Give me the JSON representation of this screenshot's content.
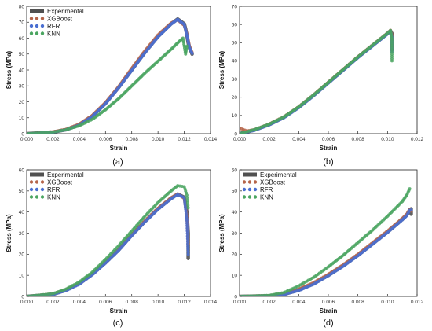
{
  "figure": {
    "panel_labels": [
      "(a)",
      "(b)",
      "(c)",
      "(d)"
    ]
  },
  "legend": {
    "entries": [
      {
        "name": "Experimental",
        "color": "#555555"
      },
      {
        "name": "XGBoost",
        "color": "#b5654a"
      },
      {
        "name": "RFR",
        "color": "#4a6fd1"
      },
      {
        "name": "KNN",
        "color": "#4aa560"
      }
    ]
  },
  "chart_data": [
    {
      "type": "scatter",
      "panel": "(a)",
      "xlabel": "Strain",
      "ylabel": "Stress (MPa)",
      "xlim": [
        0,
        0.014
      ],
      "ylim": [
        0,
        80
      ],
      "xticks": [
        "0.000",
        "0.002",
        "0.004",
        "0.006",
        "0.008",
        "0.010",
        "0.012",
        "0.014"
      ],
      "yticks": [
        "0",
        "10",
        "20",
        "30",
        "40",
        "50",
        "60",
        "70",
        "80"
      ],
      "legend_visible": true,
      "series": [
        {
          "name": "Experimental",
          "x": [
            0,
            0.002,
            0.003,
            0.004,
            0.005,
            0.006,
            0.007,
            0.008,
            0.009,
            0.01,
            0.011,
            0.0115,
            0.012,
            0.0121,
            0.0122,
            0.0123,
            0.0124,
            0.0125,
            0.0126
          ],
          "y": [
            0,
            1,
            2.5,
            5.5,
            11,
            19,
            29,
            40,
            51,
            61,
            69,
            72,
            69,
            66,
            62,
            57,
            54,
            52,
            50
          ]
        },
        {
          "name": "XGBoost",
          "x": [
            0,
            0.002,
            0.003,
            0.004,
            0.005,
            0.006,
            0.007,
            0.008,
            0.009,
            0.01,
            0.011,
            0.0115,
            0.012,
            0.0122,
            0.0124,
            0.0126
          ],
          "y": [
            0,
            1.2,
            2.8,
            6,
            11.5,
            19.5,
            29.5,
            41,
            52,
            62,
            69.5,
            71.5,
            68,
            63,
            55,
            51
          ]
        },
        {
          "name": "RFR",
          "x": [
            0,
            0.002,
            0.003,
            0.004,
            0.005,
            0.006,
            0.007,
            0.008,
            0.009,
            0.01,
            0.011,
            0.0115,
            0.012,
            0.0122,
            0.0124,
            0.0126
          ],
          "y": [
            0,
            0.9,
            2.4,
            5.4,
            10.8,
            18.8,
            28.8,
            39.8,
            50.8,
            60.8,
            68.8,
            71.8,
            68.5,
            62,
            54,
            50.5
          ]
        },
        {
          "name": "KNN",
          "x": [
            0,
            0.002,
            0.003,
            0.004,
            0.005,
            0.006,
            0.007,
            0.008,
            0.009,
            0.01,
            0.011,
            0.0115,
            0.0119,
            0.012,
            0.0121,
            0.0122
          ],
          "y": [
            0,
            1,
            2.5,
            5,
            9,
            15,
            22,
            30,
            38,
            45.5,
            53,
            57,
            60,
            55,
            50,
            55
          ]
        }
      ]
    },
    {
      "type": "scatter",
      "panel": "(b)",
      "xlabel": "Strain",
      "ylabel": "Stress (MPa)",
      "xlim": [
        0,
        0.012
      ],
      "ylim": [
        0,
        70
      ],
      "xticks": [
        "0.000",
        "0.002",
        "0.004",
        "0.006",
        "0.008",
        "0.010",
        "0.012"
      ],
      "yticks": [
        "0",
        "10",
        "20",
        "30",
        "40",
        "50",
        "60",
        "70"
      ],
      "legend_visible": false,
      "series": [
        {
          "name": "Experimental",
          "x": [
            0,
            0.001,
            0.002,
            0.003,
            0.004,
            0.005,
            0.006,
            0.007,
            0.008,
            0.009,
            0.01,
            0.0102,
            0.0103,
            0.0103,
            0.0103
          ],
          "y": [
            0,
            2,
            5,
            9,
            14.5,
            21,
            28,
            35,
            42,
            48.5,
            55,
            56.5,
            55,
            50,
            46
          ]
        },
        {
          "name": "XGBoost",
          "x": [
            0,
            0.0005,
            0.001,
            0.002,
            0.003,
            0.004,
            0.005,
            0.006,
            0.007,
            0.008,
            0.009,
            0.01,
            0.0102,
            0.0103,
            0.0103
          ],
          "y": [
            3,
            1.5,
            2.2,
            5.3,
            9.3,
            14.8,
            21.3,
            28.3,
            35.3,
            42.3,
            48.8,
            55.3,
            56.8,
            54,
            47
          ]
        },
        {
          "name": "RFR",
          "x": [
            0,
            0.001,
            0.002,
            0.003,
            0.004,
            0.005,
            0.006,
            0.007,
            0.008,
            0.009,
            0.01,
            0.0102,
            0.0103,
            0.0103
          ],
          "y": [
            0,
            1.8,
            4.8,
            8.8,
            14.3,
            20.8,
            27.8,
            34.8,
            41.8,
            48.3,
            54.8,
            56.3,
            53,
            45
          ]
        },
        {
          "name": "KNN",
          "x": [
            0,
            0.001,
            0.002,
            0.003,
            0.004,
            0.005,
            0.006,
            0.007,
            0.008,
            0.009,
            0.01,
            0.0102,
            0.0103,
            0.0103
          ],
          "y": [
            0,
            2.2,
            5.2,
            9.2,
            14.7,
            21.2,
            28.2,
            35.2,
            42.2,
            48.7,
            55.2,
            56.7,
            52,
            40
          ]
        }
      ]
    },
    {
      "type": "scatter",
      "panel": "(c)",
      "xlabel": "Strain",
      "ylabel": "Stress (MPa)",
      "xlim": [
        0,
        0.014
      ],
      "ylim": [
        0,
        60
      ],
      "xticks": [
        "0.000",
        "0.002",
        "0.004",
        "0.006",
        "0.008",
        "0.010",
        "0.012",
        "0.014"
      ],
      "yticks": [
        "0",
        "10",
        "20",
        "30",
        "40",
        "50",
        "60"
      ],
      "legend_visible": true,
      "series": [
        {
          "name": "Experimental",
          "x": [
            0,
            0.002,
            0.003,
            0.004,
            0.005,
            0.006,
            0.007,
            0.008,
            0.009,
            0.01,
            0.011,
            0.0115,
            0.012,
            0.0122,
            0.0123,
            0.0123,
            0.0123
          ],
          "y": [
            0,
            1,
            3,
            6,
            10.5,
            16,
            22,
            29,
            35.5,
            41.5,
            46.5,
            48.5,
            47,
            40,
            30,
            22,
            18
          ]
        },
        {
          "name": "XGBoost",
          "x": [
            0,
            0.002,
            0.003,
            0.004,
            0.005,
            0.006,
            0.007,
            0.008,
            0.009,
            0.01,
            0.011,
            0.0115,
            0.012,
            0.0122,
            0.0123
          ],
          "y": [
            0,
            1.2,
            3.2,
            6.2,
            10.8,
            16.3,
            22.3,
            29.3,
            35.8,
            41.8,
            46.8,
            48.6,
            46.5,
            38,
            25
          ]
        },
        {
          "name": "RFR",
          "x": [
            0,
            0.002,
            0.003,
            0.004,
            0.005,
            0.006,
            0.007,
            0.008,
            0.009,
            0.01,
            0.011,
            0.0115,
            0.012,
            0.0122,
            0.0123
          ],
          "y": [
            0,
            0.9,
            2.8,
            5.8,
            10.3,
            15.8,
            21.8,
            28.8,
            35.3,
            41.3,
            46.3,
            48.3,
            46.8,
            36,
            20
          ]
        },
        {
          "name": "KNN",
          "x": [
            0,
            0.002,
            0.003,
            0.004,
            0.005,
            0.006,
            0.007,
            0.008,
            0.009,
            0.01,
            0.011,
            0.0115,
            0.012,
            0.0122,
            0.0123
          ],
          "y": [
            0,
            1.3,
            3.5,
            6.8,
            11.5,
            17.5,
            24,
            31,
            38,
            44.5,
            50,
            52.5,
            52,
            48,
            42
          ]
        }
      ]
    },
    {
      "type": "scatter",
      "panel": "(d)",
      "xlabel": "Strain",
      "ylabel": "Stress (MPa)",
      "xlim": [
        0,
        0.012
      ],
      "ylim": [
        0,
        60
      ],
      "xticks": [
        "0.000",
        "0.002",
        "0.004",
        "0.006",
        "0.008",
        "0.010",
        "0.012"
      ],
      "yticks": [
        "0",
        "10",
        "20",
        "30",
        "40",
        "50",
        "60"
      ],
      "legend_visible": true,
      "series": [
        {
          "name": "Experimental",
          "x": [
            0,
            0.002,
            0.003,
            0.004,
            0.005,
            0.006,
            0.007,
            0.008,
            0.009,
            0.01,
            0.011,
            0.0113,
            0.0115,
            0.0116,
            0.0116
          ],
          "y": [
            0,
            0.3,
            1,
            3,
            6,
            10,
            14.5,
            19.5,
            25,
            30.5,
            36.5,
            38.5,
            41,
            41.5,
            39
          ]
        },
        {
          "name": "XGBoost",
          "x": [
            0,
            0.002,
            0.003,
            0.004,
            0.005,
            0.006,
            0.007,
            0.008,
            0.009,
            0.01,
            0.011,
            0.0113,
            0.0115,
            0.0116
          ],
          "y": [
            0,
            0.4,
            1.3,
            3.5,
            6.5,
            10.5,
            15,
            20,
            25.5,
            31,
            37,
            39,
            41.2,
            40.5
          ]
        },
        {
          "name": "RFR",
          "x": [
            0,
            0.002,
            0.003,
            0.004,
            0.005,
            0.006,
            0.007,
            0.008,
            0.009,
            0.01,
            0.011,
            0.0113,
            0.0115,
            0.0116
          ],
          "y": [
            0,
            0.2,
            0.9,
            2.8,
            5.8,
            9.8,
            14.3,
            19.3,
            24.8,
            30.3,
            36.3,
            38.3,
            40.8,
            41
          ]
        },
        {
          "name": "KNN",
          "x": [
            0,
            0.002,
            0.003,
            0.004,
            0.005,
            0.006,
            0.007,
            0.008,
            0.009,
            0.01,
            0.011,
            0.0113,
            0.0115
          ],
          "y": [
            0,
            0.5,
            1.8,
            5,
            9,
            14,
            19.5,
            25.5,
            31.5,
            38,
            45,
            48,
            51
          ]
        }
      ]
    }
  ]
}
